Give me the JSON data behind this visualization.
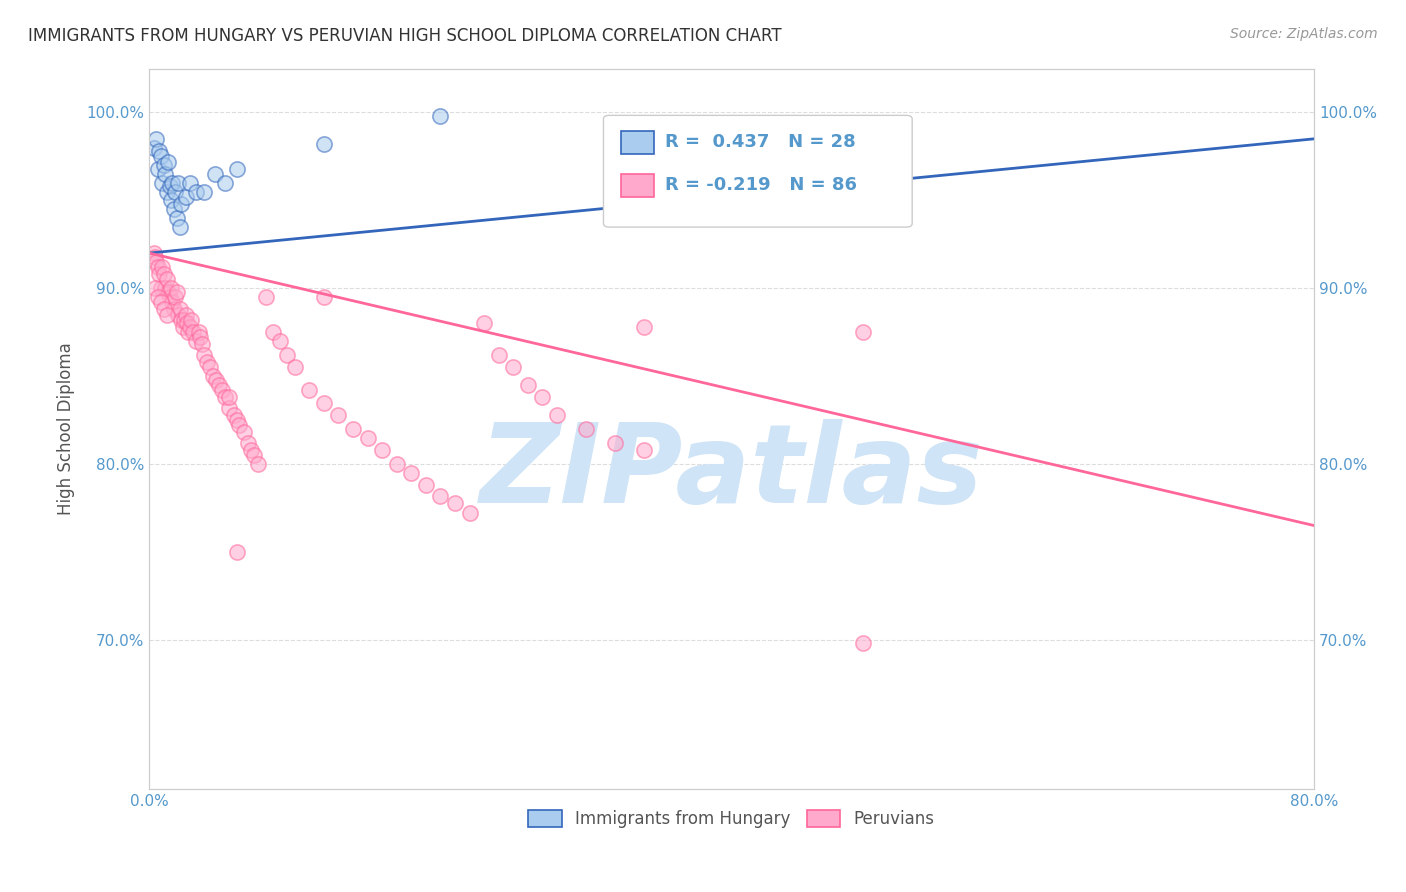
{
  "title": "IMMIGRANTS FROM HUNGARY VS PERUVIAN HIGH SCHOOL DIPLOMA CORRELATION CHART",
  "source": "Source: ZipAtlas.com",
  "ylabel": "High School Diploma",
  "watermark": "ZIPatlas",
  "legend_blue_label": "Immigrants from Hungary",
  "legend_pink_label": "Peruvians",
  "legend_blue_R": "R =  0.437",
  "legend_blue_N": "N = 28",
  "legend_pink_R": "R = -0.219",
  "legend_pink_N": "N = 86",
  "xmin": 0.0,
  "xmax": 0.8,
  "ymin": 0.615,
  "ymax": 1.025,
  "xticks": [
    0.0,
    0.8
  ],
  "yticks": [
    0.7,
    0.8,
    0.9,
    1.0
  ],
  "ytick_labels": [
    "70.0%",
    "80.0%",
    "90.0%",
    "100.0%"
  ],
  "xtick_labels": [
    "0.0%",
    "80.0%"
  ],
  "blue_scatter_x": [
    0.003,
    0.005,
    0.006,
    0.007,
    0.008,
    0.009,
    0.01,
    0.011,
    0.012,
    0.013,
    0.014,
    0.015,
    0.016,
    0.017,
    0.018,
    0.019,
    0.02,
    0.021,
    0.022,
    0.025,
    0.028,
    0.032,
    0.038,
    0.045,
    0.052,
    0.06,
    0.12,
    0.2
  ],
  "blue_scatter_y": [
    0.98,
    0.985,
    0.968,
    0.978,
    0.975,
    0.96,
    0.97,
    0.965,
    0.955,
    0.972,
    0.958,
    0.95,
    0.96,
    0.945,
    0.955,
    0.94,
    0.96,
    0.935,
    0.948,
    0.952,
    0.96,
    0.955,
    0.955,
    0.965,
    0.96,
    0.968,
    0.982,
    0.998
  ],
  "pink_scatter_x": [
    0.003,
    0.004,
    0.005,
    0.006,
    0.007,
    0.008,
    0.009,
    0.01,
    0.011,
    0.012,
    0.013,
    0.014,
    0.015,
    0.016,
    0.017,
    0.018,
    0.019,
    0.02,
    0.021,
    0.022,
    0.023,
    0.024,
    0.025,
    0.026,
    0.027,
    0.028,
    0.029,
    0.03,
    0.032,
    0.034,
    0.035,
    0.036,
    0.038,
    0.04,
    0.042,
    0.044,
    0.046,
    0.048,
    0.05,
    0.052,
    0.055,
    0.058,
    0.06,
    0.062,
    0.065,
    0.068,
    0.07,
    0.072,
    0.075,
    0.08,
    0.085,
    0.09,
    0.095,
    0.1,
    0.11,
    0.12,
    0.13,
    0.14,
    0.15,
    0.16,
    0.17,
    0.18,
    0.19,
    0.2,
    0.21,
    0.22,
    0.23,
    0.24,
    0.25,
    0.26,
    0.27,
    0.28,
    0.3,
    0.32,
    0.34,
    0.004,
    0.006,
    0.008,
    0.01,
    0.012,
    0.055,
    0.12,
    0.34,
    0.49,
    0.06,
    0.49
  ],
  "pink_scatter_y": [
    0.92,
    0.918,
    0.915,
    0.912,
    0.908,
    0.9,
    0.912,
    0.908,
    0.9,
    0.905,
    0.898,
    0.895,
    0.9,
    0.892,
    0.888,
    0.895,
    0.898,
    0.885,
    0.888,
    0.882,
    0.878,
    0.882,
    0.885,
    0.88,
    0.875,
    0.878,
    0.882,
    0.875,
    0.87,
    0.875,
    0.872,
    0.868,
    0.862,
    0.858,
    0.855,
    0.85,
    0.848,
    0.845,
    0.842,
    0.838,
    0.832,
    0.828,
    0.825,
    0.822,
    0.818,
    0.812,
    0.808,
    0.805,
    0.8,
    0.895,
    0.875,
    0.87,
    0.862,
    0.855,
    0.842,
    0.835,
    0.828,
    0.82,
    0.815,
    0.808,
    0.8,
    0.795,
    0.788,
    0.782,
    0.778,
    0.772,
    0.88,
    0.862,
    0.855,
    0.845,
    0.838,
    0.828,
    0.82,
    0.812,
    0.808,
    0.9,
    0.895,
    0.892,
    0.888,
    0.885,
    0.838,
    0.895,
    0.878,
    0.875,
    0.75,
    0.698
  ],
  "blue_line_x": [
    0.0,
    0.8
  ],
  "blue_line_y": [
    0.92,
    0.985
  ],
  "pink_line_x": [
    0.0,
    0.8
  ],
  "pink_line_y": [
    0.92,
    0.765
  ],
  "blue_color": "#AACCEE",
  "pink_color": "#FFAACC",
  "blue_line_color": "#3366BB",
  "pink_line_color": "#FF6699",
  "background_color": "#FFFFFF",
  "grid_color": "#DDDDDD",
  "axis_label_color": "#5599CC",
  "title_color": "#333333",
  "watermark_color": "#D0E4F7",
  "dot_size": 120,
  "dot_alpha": 0.55,
  "dot_linewidth": 1.2
}
